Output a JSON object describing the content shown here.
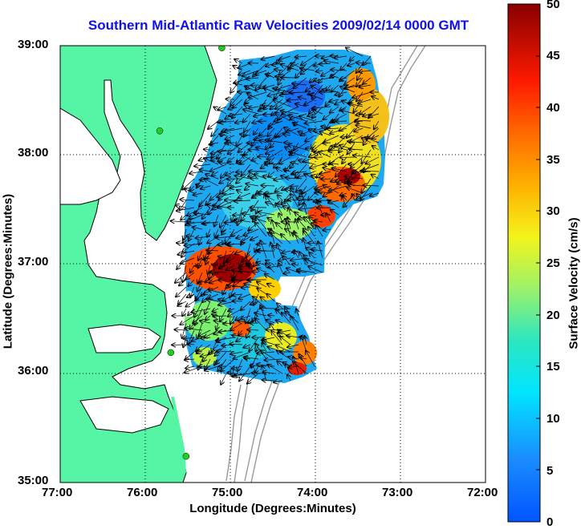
{
  "title": "Southern Mid-Atlantic Raw Velocities 2009/02/14 0000 GMT",
  "xlabel": "Longitude (Degrees:Minutes)",
  "ylabel": "Latitude (Degrees:Minutes)",
  "colorbar": {
    "label": "Surface Velocity (cm/s)",
    "range": [
      0,
      50
    ],
    "ticks": [
      "0",
      "5",
      "10",
      "15",
      "20",
      "25",
      "30",
      "35",
      "40",
      "45",
      "50"
    ]
  },
  "x_ticks": [
    "77:00",
    "76:00",
    "75:00",
    "74:00",
    "73:00",
    "72:00"
  ],
  "y_ticks": [
    "39:00",
    "38:00",
    "37:00",
    "36:00",
    "35:00"
  ],
  "colors": {
    "land": "#55f5a5",
    "coastline": "#000000",
    "bathymetry": "#999999",
    "title": "#1010ee",
    "station": "#22cc22"
  },
  "chart_data": {
    "type": "heatmap",
    "xlim": [
      -77,
      -72
    ],
    "ylim": [
      35,
      39
    ],
    "grid": true,
    "stations": [
      {
        "lon": -75.1,
        "lat": 38.98
      },
      {
        "lon": -75.83,
        "lat": 38.22
      },
      {
        "lon": -75.7,
        "lat": 36.19
      },
      {
        "lon": -75.52,
        "lat": 35.24
      }
    ]
  }
}
